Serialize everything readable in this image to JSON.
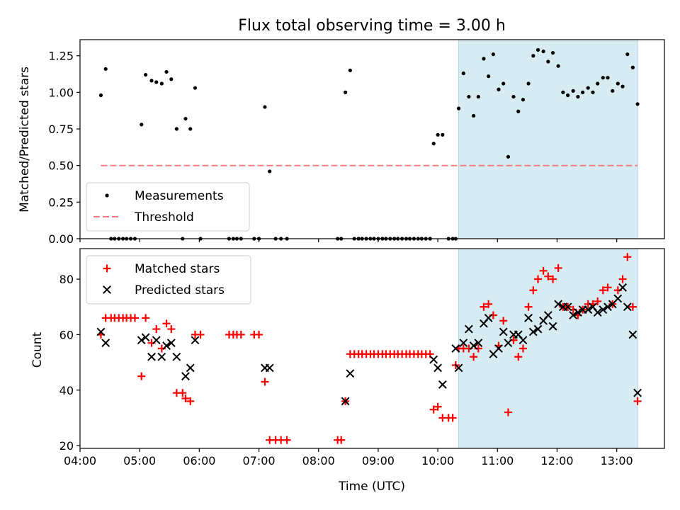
{
  "chart_data": [
    {
      "type": "scatter",
      "title": "Flux total observing time = 3.00 h",
      "xlabel": "",
      "ylabel": "Matched/Predicted stars",
      "xlim_hours": [
        4.0,
        13.8
      ],
      "ylim": [
        0.0,
        1.36
      ],
      "y_ticks": [
        "0.00",
        "0.25",
        "0.50",
        "0.75",
        "1.00",
        "1.25"
      ],
      "y_tick_values": [
        0.0,
        0.25,
        0.5,
        0.75,
        1.0,
        1.25
      ],
      "shaded_region_hours": [
        10.35,
        13.35
      ],
      "shaded_color": "#add8e6",
      "legend_position": "lower-left",
      "threshold": {
        "name": "Threshold",
        "value": 0.5,
        "x_range_hours": [
          4.35,
          13.35
        ],
        "color": "#f08080"
      },
      "series": [
        {
          "name": "Measurements",
          "color": "#000000",
          "marker": "dot",
          "points": [
            [
              4.35,
              0.98
            ],
            [
              4.43,
              1.16
            ],
            [
              4.52,
              0
            ],
            [
              4.58,
              0
            ],
            [
              4.65,
              0
            ],
            [
              4.72,
              0
            ],
            [
              4.78,
              0
            ],
            [
              4.85,
              0
            ],
            [
              4.92,
              0
            ],
            [
              5.03,
              0.78
            ],
            [
              5.1,
              1.12
            ],
            [
              5.2,
              1.08
            ],
            [
              5.28,
              1.07
            ],
            [
              5.37,
              1.06
            ],
            [
              5.45,
              1.14
            ],
            [
              5.53,
              1.09
            ],
            [
              5.62,
              0.75
            ],
            [
              5.72,
              0
            ],
            [
              5.77,
              0.82
            ],
            [
              5.85,
              0.75
            ],
            [
              5.93,
              1.03
            ],
            [
              6.02,
              0
            ],
            [
              6.5,
              0
            ],
            [
              6.57,
              0
            ],
            [
              6.63,
              0
            ],
            [
              6.7,
              0
            ],
            [
              6.92,
              0
            ],
            [
              7.0,
              0
            ],
            [
              7.1,
              0.9
            ],
            [
              7.18,
              0.46
            ],
            [
              7.28,
              0
            ],
            [
              7.37,
              0
            ],
            [
              7.47,
              0
            ],
            [
              8.32,
              0
            ],
            [
              8.38,
              0
            ],
            [
              8.45,
              1.0
            ],
            [
              8.53,
              1.15
            ],
            [
              8.6,
              0
            ],
            [
              8.67,
              0
            ],
            [
              8.73,
              0
            ],
            [
              8.8,
              0
            ],
            [
              8.87,
              0
            ],
            [
              8.93,
              0
            ],
            [
              9.0,
              0
            ],
            [
              9.07,
              0
            ],
            [
              9.13,
              0
            ],
            [
              9.2,
              0
            ],
            [
              9.27,
              0
            ],
            [
              9.33,
              0
            ],
            [
              9.4,
              0
            ],
            [
              9.47,
              0
            ],
            [
              9.53,
              0
            ],
            [
              9.6,
              0
            ],
            [
              9.67,
              0
            ],
            [
              9.73,
              0
            ],
            [
              9.8,
              0
            ],
            [
              9.87,
              0
            ],
            [
              9.93,
              0.65
            ],
            [
              10.0,
              0.71
            ],
            [
              10.08,
              0.71
            ],
            [
              10.18,
              0
            ],
            [
              10.25,
              0
            ],
            [
              10.3,
              0
            ],
            [
              10.35,
              0.89
            ],
            [
              10.43,
              1.13
            ],
            [
              10.52,
              0.97
            ],
            [
              10.6,
              0.84
            ],
            [
              10.68,
              0.97
            ],
            [
              10.77,
              1.23
            ],
            [
              10.85,
              1.11
            ],
            [
              10.93,
              1.26
            ],
            [
              11.02,
              1.02
            ],
            [
              11.1,
              1.06
            ],
            [
              11.18,
              0.56
            ],
            [
              11.27,
              0.97
            ],
            [
              11.35,
              0.87
            ],
            [
              11.43,
              0.95
            ],
            [
              11.52,
              1.06
            ],
            [
              11.6,
              1.25
            ],
            [
              11.68,
              1.29
            ],
            [
              11.77,
              1.28
            ],
            [
              11.85,
              1.21
            ],
            [
              11.93,
              1.27
            ],
            [
              12.02,
              1.18
            ],
            [
              12.1,
              1.0
            ],
            [
              12.18,
              0.98
            ],
            [
              12.27,
              1.01
            ],
            [
              12.35,
              0.97
            ],
            [
              12.43,
              1.0
            ],
            [
              12.52,
              1.03
            ],
            [
              12.6,
              1.0
            ],
            [
              12.68,
              1.06
            ],
            [
              12.77,
              1.1
            ],
            [
              12.85,
              1.1
            ],
            [
              12.93,
              1.01
            ],
            [
              13.02,
              1.06
            ],
            [
              13.1,
              1.04
            ],
            [
              13.18,
              1.26
            ],
            [
              13.27,
              1.17
            ],
            [
              13.35,
              0.92
            ]
          ]
        }
      ]
    },
    {
      "type": "scatter",
      "title": "",
      "xlabel": "Time (UTC)",
      "ylabel": "Count",
      "xlim_hours": [
        4.0,
        13.8
      ],
      "ylim": [
        19,
        91
      ],
      "x_ticks": [
        "04:00",
        "05:00",
        "06:00",
        "07:00",
        "08:00",
        "09:00",
        "10:00",
        "11:00",
        "12:00",
        "13:00"
      ],
      "x_tick_hours": [
        4,
        5,
        6,
        7,
        8,
        9,
        10,
        11,
        12,
        13
      ],
      "y_ticks": [
        "20",
        "40",
        "60",
        "80"
      ],
      "y_tick_values": [
        20,
        40,
        60,
        80
      ],
      "shaded_region_hours": [
        10.35,
        13.35
      ],
      "shaded_color": "#add8e6",
      "legend_position": "upper-left",
      "series": [
        {
          "name": "Matched stars",
          "color": "#ff0000",
          "marker": "plus",
          "points": [
            [
              4.35,
              60
            ],
            [
              4.43,
              66
            ],
            [
              4.52,
              66
            ],
            [
              4.58,
              66
            ],
            [
              4.65,
              66
            ],
            [
              4.72,
              66
            ],
            [
              4.78,
              66
            ],
            [
              4.85,
              66
            ],
            [
              4.92,
              66
            ],
            [
              5.03,
              45
            ],
            [
              5.1,
              66
            ],
            [
              5.2,
              57
            ],
            [
              5.28,
              62
            ],
            [
              5.37,
              55
            ],
            [
              5.45,
              64
            ],
            [
              5.53,
              62
            ],
            [
              5.62,
              39
            ],
            [
              5.72,
              39
            ],
            [
              5.77,
              37
            ],
            [
              5.85,
              36
            ],
            [
              5.93,
              60
            ],
            [
              6.02,
              60
            ],
            [
              6.5,
              60
            ],
            [
              6.57,
              60
            ],
            [
              6.63,
              60
            ],
            [
              6.7,
              60
            ],
            [
              6.92,
              60
            ],
            [
              7.0,
              60
            ],
            [
              7.1,
              43
            ],
            [
              7.18,
              22
            ],
            [
              7.28,
              22
            ],
            [
              7.37,
              22
            ],
            [
              7.47,
              22
            ],
            [
              8.32,
              22
            ],
            [
              8.38,
              22
            ],
            [
              8.45,
              36
            ],
            [
              8.53,
              53
            ],
            [
              8.6,
              53
            ],
            [
              8.67,
              53
            ],
            [
              8.73,
              53
            ],
            [
              8.8,
              53
            ],
            [
              8.87,
              53
            ],
            [
              8.93,
              53
            ],
            [
              9.0,
              53
            ],
            [
              9.07,
              53
            ],
            [
              9.13,
              53
            ],
            [
              9.2,
              53
            ],
            [
              9.27,
              53
            ],
            [
              9.33,
              53
            ],
            [
              9.4,
              53
            ],
            [
              9.47,
              53
            ],
            [
              9.53,
              53
            ],
            [
              9.6,
              53
            ],
            [
              9.67,
              53
            ],
            [
              9.73,
              53
            ],
            [
              9.8,
              53
            ],
            [
              9.87,
              53
            ],
            [
              9.93,
              33
            ],
            [
              10.0,
              34
            ],
            [
              10.08,
              30
            ],
            [
              10.18,
              30
            ],
            [
              10.25,
              30
            ],
            [
              10.3,
              49
            ],
            [
              10.35,
              55
            ],
            [
              10.43,
              55
            ],
            [
              10.52,
              55
            ],
            [
              10.6,
              52
            ],
            [
              10.68,
              55
            ],
            [
              10.77,
              70
            ],
            [
              10.85,
              71
            ],
            [
              10.93,
              67
            ],
            [
              11.02,
              56
            ],
            [
              11.1,
              65
            ],
            [
              11.18,
              32
            ],
            [
              11.27,
              58
            ],
            [
              11.35,
              52
            ],
            [
              11.43,
              55
            ],
            [
              11.52,
              70
            ],
            [
              11.6,
              76
            ],
            [
              11.68,
              80
            ],
            [
              11.77,
              83
            ],
            [
              11.85,
              81
            ],
            [
              11.93,
              80
            ],
            [
              12.02,
              84
            ],
            [
              12.1,
              70
            ],
            [
              12.18,
              70
            ],
            [
              12.27,
              69
            ],
            [
              12.35,
              67
            ],
            [
              12.43,
              69
            ],
            [
              12.52,
              71
            ],
            [
              12.6,
              71
            ],
            [
              12.68,
              72
            ],
            [
              12.77,
              76
            ],
            [
              12.85,
              77
            ],
            [
              12.93,
              71
            ],
            [
              13.02,
              76
            ],
            [
              13.1,
              80
            ],
            [
              13.18,
              88
            ],
            [
              13.27,
              70
            ],
            [
              13.35,
              36
            ]
          ]
        },
        {
          "name": "Predicted stars",
          "color": "#000000",
          "marker": "x",
          "points": [
            [
              4.35,
              61
            ],
            [
              4.43,
              57
            ],
            [
              5.03,
              58
            ],
            [
              5.1,
              59
            ],
            [
              5.2,
              52
            ],
            [
              5.28,
              58
            ],
            [
              5.37,
              52
            ],
            [
              5.45,
              56
            ],
            [
              5.53,
              57
            ],
            [
              5.62,
              52
            ],
            [
              5.77,
              45
            ],
            [
              5.85,
              48
            ],
            [
              5.93,
              58
            ],
            [
              7.1,
              48
            ],
            [
              7.18,
              48
            ],
            [
              8.45,
              36
            ],
            [
              8.53,
              46
            ],
            [
              9.93,
              51
            ],
            [
              10.0,
              48
            ],
            [
              10.08,
              42
            ],
            [
              10.3,
              55
            ],
            [
              10.35,
              48
            ],
            [
              10.43,
              57
            ],
            [
              10.52,
              62
            ],
            [
              10.6,
              56
            ],
            [
              10.68,
              57
            ],
            [
              10.77,
              64
            ],
            [
              10.85,
              66
            ],
            [
              10.93,
              53
            ],
            [
              11.02,
              55
            ],
            [
              11.1,
              61
            ],
            [
              11.18,
              57
            ],
            [
              11.27,
              60
            ],
            [
              11.35,
              60
            ],
            [
              11.43,
              58
            ],
            [
              11.52,
              66
            ],
            [
              11.6,
              61
            ],
            [
              11.68,
              62
            ],
            [
              11.77,
              65
            ],
            [
              11.85,
              67
            ],
            [
              11.93,
              63
            ],
            [
              12.02,
              71
            ],
            [
              12.1,
              70
            ],
            [
              12.18,
              70
            ],
            [
              12.27,
              67
            ],
            [
              12.35,
              68
            ],
            [
              12.43,
              69
            ],
            [
              12.52,
              69
            ],
            [
              12.6,
              70
            ],
            [
              12.68,
              68
            ],
            [
              12.77,
              69
            ],
            [
              12.85,
              70
            ],
            [
              12.93,
              71
            ],
            [
              13.02,
              73
            ],
            [
              13.1,
              77
            ],
            [
              13.18,
              70
            ],
            [
              13.27,
              60
            ],
            [
              13.35,
              39
            ]
          ]
        }
      ]
    }
  ]
}
